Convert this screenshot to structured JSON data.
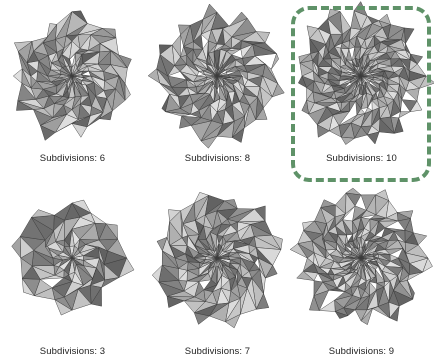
{
  "selection": {
    "selected_index": 2,
    "accent_color": "#5f9268"
  },
  "thumbnails": [
    {
      "caption": "Subdivisions: 6",
      "subdivisions": 6,
      "selected": false
    },
    {
      "caption": "Subdivisions: 8",
      "subdivisions": 8,
      "selected": false
    },
    {
      "caption": "Subdivisions: 10",
      "subdivisions": 10,
      "selected": true
    },
    {
      "caption": "Subdivisions: 3",
      "subdivisions": 3,
      "selected": false
    },
    {
      "caption": "Subdivisions: 7",
      "subdivisions": 7,
      "selected": false
    },
    {
      "caption": "Subdivisions: 9",
      "subdivisions": 9,
      "selected": false
    }
  ]
}
